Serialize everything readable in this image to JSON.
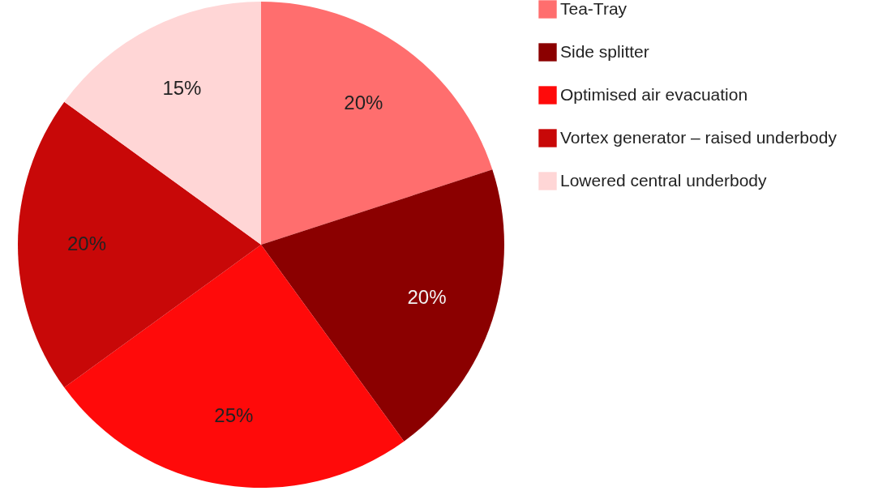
{
  "chart_data": {
    "type": "pie",
    "categories": [
      "Tea-Tray",
      "Side splitter",
      "Optimised air evacuation",
      "Vortex generator – raised underbody",
      "Lowered central underbody"
    ],
    "values": [
      20,
      20,
      25,
      20,
      15
    ],
    "value_labels": [
      "20%",
      "20%",
      "25%",
      "20%",
      "15%"
    ],
    "colors": [
      "#ff6e6e",
      "#8b0000",
      "#ff0a0a",
      "#c80808",
      "#ffd6d6"
    ],
    "legend": "right"
  }
}
